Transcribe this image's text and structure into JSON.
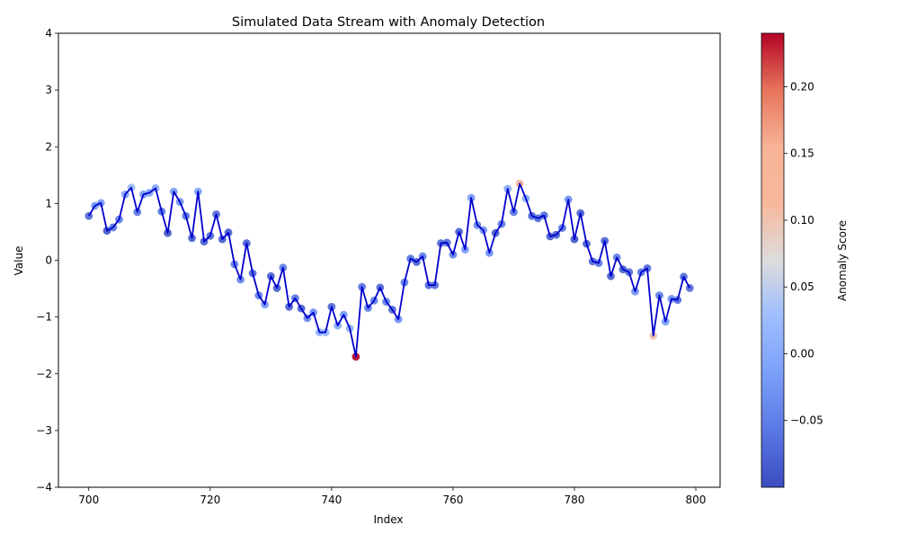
{
  "chart_data": {
    "type": "scatter",
    "title": "Simulated Data Stream with Anomaly Detection",
    "xlabel": "Index",
    "ylabel": "Value",
    "xlim": [
      695,
      804
    ],
    "ylim": [
      -4,
      4
    ],
    "xticks": [
      700,
      720,
      740,
      760,
      780,
      800
    ],
    "yticks": [
      -4,
      -3,
      -2,
      -1,
      0,
      1,
      2,
      3,
      4
    ],
    "grid": false,
    "line_color": "#0000cd",
    "colorbar": {
      "label": "Anomaly Score",
      "colormap": "coolwarm",
      "range": [
        -0.1,
        0.24
      ],
      "ticks": [
        -0.05,
        0.0,
        0.05,
        0.1,
        0.15,
        0.2
      ],
      "tick_labels": [
        "−0.05",
        "0.00",
        "0.05",
        "0.10",
        "0.15",
        "0.20"
      ]
    },
    "x": [
      700,
      701,
      702,
      703,
      704,
      705,
      706,
      707,
      708,
      709,
      710,
      711,
      712,
      713,
      714,
      715,
      716,
      717,
      718,
      719,
      720,
      721,
      722,
      723,
      724,
      725,
      726,
      727,
      728,
      729,
      730,
      731,
      732,
      733,
      734,
      735,
      736,
      737,
      738,
      739,
      740,
      741,
      742,
      743,
      744,
      745,
      746,
      747,
      748,
      749,
      750,
      751,
      752,
      753,
      754,
      755,
      756,
      757,
      758,
      759,
      760,
      761,
      762,
      763,
      764,
      765,
      766,
      767,
      768,
      769,
      770,
      771,
      772,
      773,
      774,
      775,
      776,
      777,
      778,
      779,
      780,
      781,
      782,
      783,
      784,
      785,
      786,
      787,
      788,
      789,
      790,
      791,
      792,
      793,
      794,
      795,
      796,
      797,
      798,
      799
    ],
    "values": [
      0.78,
      0.96,
      1.01,
      0.52,
      0.58,
      0.72,
      1.16,
      1.28,
      0.85,
      1.16,
      1.19,
      1.27,
      0.86,
      0.48,
      1.21,
      1.03,
      0.78,
      0.39,
      1.21,
      0.33,
      0.43,
      0.81,
      0.37,
      0.49,
      -0.07,
      -0.34,
      0.3,
      -0.23,
      -0.62,
      -0.78,
      -0.28,
      -0.49,
      -0.13,
      -0.82,
      -0.67,
      -0.85,
      -1.02,
      -0.92,
      -1.27,
      -1.27,
      -0.82,
      -1.15,
      -0.96,
      -1.2,
      -1.7,
      -0.47,
      -0.84,
      -0.71,
      -0.48,
      -0.73,
      -0.87,
      -1.04,
      -0.39,
      0.03,
      -0.03,
      0.07,
      -0.44,
      -0.44,
      0.3,
      0.31,
      0.1,
      0.5,
      0.19,
      1.1,
      0.62,
      0.53,
      0.13,
      0.48,
      0.64,
      1.26,
      0.85,
      1.35,
      1.09,
      0.78,
      0.74,
      0.79,
      0.42,
      0.45,
      0.57,
      1.07,
      0.37,
      0.83,
      0.29,
      -0.02,
      -0.05,
      0.34,
      -0.28,
      0.05,
      -0.16,
      -0.21,
      -0.55,
      -0.21,
      -0.14,
      -1.33,
      -0.62,
      -1.08,
      -0.68,
      -0.7,
      -0.29,
      -0.49
    ],
    "anomaly_scores": [
      -0.07,
      -0.02,
      -0.02,
      -0.09,
      -0.06,
      -0.05,
      -0.01,
      0.02,
      -0.06,
      -0.02,
      -0.01,
      0.0,
      -0.06,
      -0.09,
      -0.02,
      -0.03,
      -0.06,
      -0.08,
      -0.01,
      -0.08,
      -0.07,
      -0.07,
      -0.08,
      -0.08,
      -0.05,
      -0.04,
      -0.08,
      -0.07,
      -0.05,
      -0.02,
      -0.08,
      -0.08,
      -0.05,
      -0.08,
      -0.06,
      -0.08,
      -0.04,
      -0.03,
      0.01,
      0.02,
      -0.07,
      0.0,
      -0.02,
      0.01,
      0.24,
      -0.06,
      -0.05,
      -0.05,
      -0.07,
      -0.05,
      -0.07,
      -0.03,
      -0.05,
      -0.06,
      -0.08,
      -0.05,
      -0.07,
      -0.07,
      -0.07,
      -0.07,
      -0.05,
      -0.08,
      -0.02,
      -0.02,
      -0.04,
      -0.03,
      -0.03,
      -0.08,
      -0.05,
      0.0,
      -0.06,
      0.14,
      0.0,
      -0.07,
      -0.07,
      -0.07,
      -0.08,
      -0.08,
      -0.06,
      -0.03,
      -0.09,
      -0.08,
      -0.08,
      -0.07,
      -0.06,
      -0.08,
      -0.08,
      -0.05,
      -0.08,
      -0.07,
      -0.03,
      -0.06,
      -0.07,
      0.1,
      -0.05,
      -0.02,
      -0.03,
      -0.07,
      -0.07,
      -0.07
    ]
  }
}
